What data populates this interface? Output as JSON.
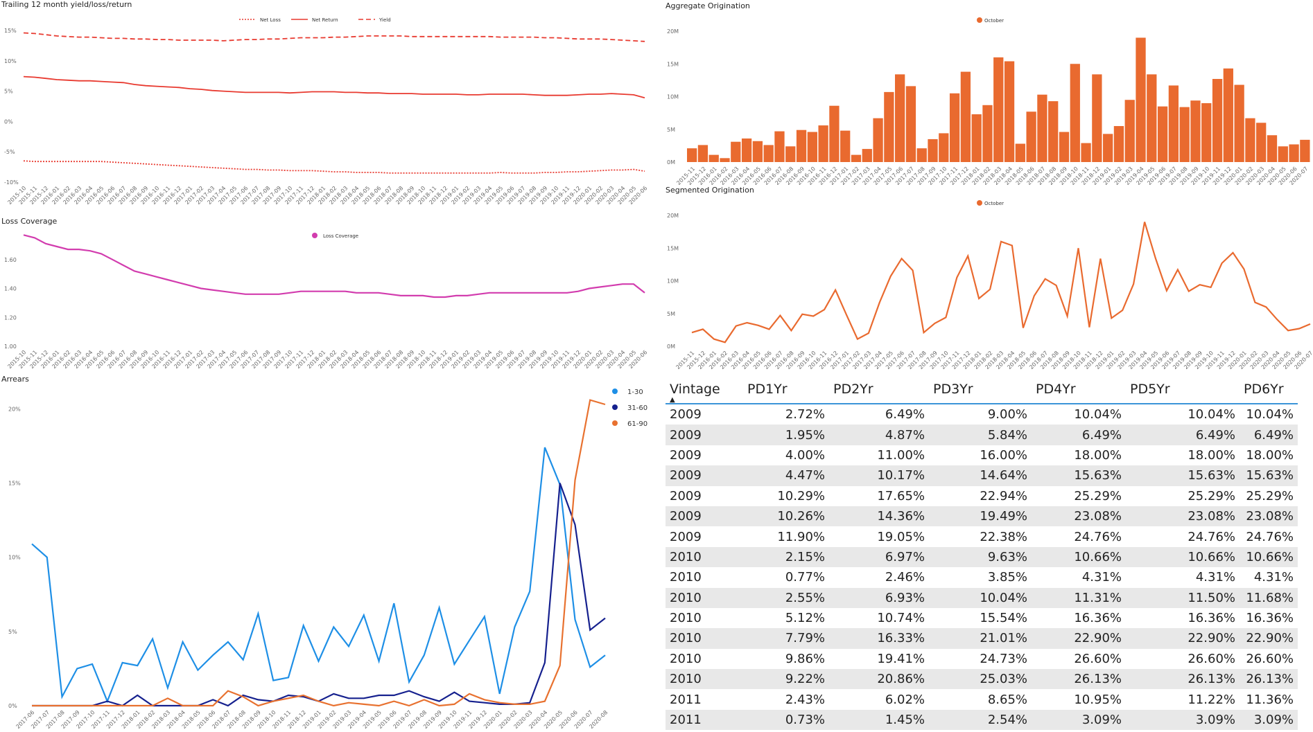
{
  "colors": {
    "red": "#e8392f",
    "orange": "#e96a2f",
    "magenta": "#d23cae",
    "light_blue": "#1e8fe6",
    "navy": "#15208e",
    "orange2": "#e8712f",
    "table_header_line": "#3a94d8"
  },
  "trailing": {
    "title": "Trailing 12 month yield/loss/return",
    "legend": [
      "Net Loss",
      "Net Return",
      "Yield"
    ],
    "chart_data": {
      "type": "line",
      "x": [
        "2015-10",
        "2015-11",
        "2015-12",
        "2016-01",
        "2016-02",
        "2016-03",
        "2016-04",
        "2016-05",
        "2016-06",
        "2016-07",
        "2016-08",
        "2016-09",
        "2016-10",
        "2016-11",
        "2016-12",
        "2017-01",
        "2017-02",
        "2017-03",
        "2017-04",
        "2017-05",
        "2017-06",
        "2017-07",
        "2017-08",
        "2017-09",
        "2017-10",
        "2017-11",
        "2017-12",
        "2018-01",
        "2018-02",
        "2018-03",
        "2018-04",
        "2018-05",
        "2018-06",
        "2018-07",
        "2018-08",
        "2018-09",
        "2018-10",
        "2018-11",
        "2018-12",
        "2019-01",
        "2019-02",
        "2019-03",
        "2019-04",
        "2019-05",
        "2019-06",
        "2019-07",
        "2019-08",
        "2019-09",
        "2019-10",
        "2019-11",
        "2019-12",
        "2020-01",
        "2020-02",
        "2020-03",
        "2020-04",
        "2020-05",
        "2020-06"
      ],
      "series": [
        {
          "name": "Yield",
          "values": [
            14.6,
            14.5,
            14.3,
            14.1,
            14.0,
            13.9,
            13.9,
            13.8,
            13.7,
            13.7,
            13.6,
            13.6,
            13.5,
            13.5,
            13.4,
            13.4,
            13.4,
            13.4,
            13.3,
            13.4,
            13.5,
            13.5,
            13.6,
            13.6,
            13.7,
            13.8,
            13.8,
            13.8,
            13.9,
            13.9,
            14.0,
            14.1,
            14.1,
            14.1,
            14.1,
            14.0,
            14.0,
            14.0,
            14.0,
            14.0,
            14.0,
            14.0,
            14.0,
            13.9,
            13.9,
            13.9,
            13.9,
            13.8,
            13.8,
            13.7,
            13.6,
            13.6,
            13.6,
            13.5,
            13.4,
            13.3,
            13.2
          ]
        },
        {
          "name": "Net Return",
          "values": [
            7.4,
            7.3,
            7.1,
            6.9,
            6.8,
            6.7,
            6.7,
            6.6,
            6.5,
            6.4,
            6.1,
            5.9,
            5.8,
            5.7,
            5.6,
            5.4,
            5.3,
            5.1,
            5.0,
            4.9,
            4.8,
            4.8,
            4.8,
            4.8,
            4.7,
            4.8,
            4.9,
            4.9,
            4.9,
            4.8,
            4.8,
            4.7,
            4.7,
            4.6,
            4.6,
            4.6,
            4.5,
            4.5,
            4.5,
            4.5,
            4.4,
            4.4,
            4.5,
            4.5,
            4.5,
            4.5,
            4.4,
            4.3,
            4.3,
            4.3,
            4.4,
            4.5,
            4.5,
            4.6,
            4.5,
            4.4,
            3.9
          ]
        },
        {
          "name": "Net Loss",
          "values": [
            -6.5,
            -6.6,
            -6.6,
            -6.6,
            -6.6,
            -6.6,
            -6.6,
            -6.6,
            -6.7,
            -6.8,
            -6.9,
            -7.0,
            -7.1,
            -7.2,
            -7.3,
            -7.4,
            -7.5,
            -7.6,
            -7.7,
            -7.8,
            -7.9,
            -7.9,
            -8.0,
            -8.0,
            -8.1,
            -8.1,
            -8.1,
            -8.2,
            -8.3,
            -8.3,
            -8.4,
            -8.4,
            -8.4,
            -8.5,
            -8.5,
            -8.5,
            -8.5,
            -8.5,
            -8.5,
            -8.5,
            -8.5,
            -8.5,
            -8.5,
            -8.4,
            -8.5,
            -8.5,
            -8.5,
            -8.4,
            -8.4,
            -8.3,
            -8.3,
            -8.2,
            -8.1,
            -8.0,
            -8.0,
            -7.9,
            -8.2
          ]
        }
      ],
      "ylim": [
        -10,
        15
      ],
      "yticks": [
        "15%",
        "10%",
        "5%",
        "0%",
        "-5%",
        "-10%"
      ]
    }
  },
  "loss_coverage": {
    "title": "Loss Coverage",
    "legend": [
      "Loss Coverage"
    ],
    "chart_data": {
      "type": "line",
      "x": [
        "2015-10",
        "2015-11",
        "2015-12",
        "2016-01",
        "2016-02",
        "2016-03",
        "2016-04",
        "2016-05",
        "2016-06",
        "2016-07",
        "2016-08",
        "2016-09",
        "2016-10",
        "2016-11",
        "2016-12",
        "2017-01",
        "2017-02",
        "2017-03",
        "2017-04",
        "2017-05",
        "2017-06",
        "2017-07",
        "2017-08",
        "2017-09",
        "2017-10",
        "2017-11",
        "2017-12",
        "2018-01",
        "2018-02",
        "2018-03",
        "2018-04",
        "2018-05",
        "2018-06",
        "2018-07",
        "2018-08",
        "2018-09",
        "2018-10",
        "2018-11",
        "2018-12",
        "2019-01",
        "2019-02",
        "2019-03",
        "2019-04",
        "2019-05",
        "2019-06",
        "2019-07",
        "2019-08",
        "2019-09",
        "2019-10",
        "2019-11",
        "2019-12",
        "2020-01",
        "2020-02",
        "2020-03",
        "2020-04",
        "2020-05",
        "2020-06"
      ],
      "series": [
        {
          "name": "Loss Coverage",
          "values": [
            1.77,
            1.75,
            1.71,
            1.69,
            1.67,
            1.67,
            1.66,
            1.64,
            1.6,
            1.56,
            1.52,
            1.5,
            1.48,
            1.46,
            1.44,
            1.42,
            1.4,
            1.39,
            1.38,
            1.37,
            1.36,
            1.36,
            1.36,
            1.36,
            1.37,
            1.38,
            1.38,
            1.38,
            1.38,
            1.38,
            1.37,
            1.37,
            1.37,
            1.36,
            1.35,
            1.35,
            1.35,
            1.34,
            1.34,
            1.35,
            1.35,
            1.36,
            1.37,
            1.37,
            1.37,
            1.37,
            1.37,
            1.37,
            1.37,
            1.37,
            1.38,
            1.4,
            1.41,
            1.42,
            1.43,
            1.43,
            1.37
          ]
        }
      ],
      "ylim": [
        1.0,
        1.8
      ],
      "yticks": [
        "1.60",
        "1.40",
        "1.20",
        "1.00"
      ]
    }
  },
  "arrears": {
    "title": "Arrears",
    "legend": [
      "1-30",
      "31-60",
      "61-90"
    ],
    "chart_data": {
      "type": "line",
      "x": [
        "2017-06",
        "2017-07",
        "2017-08",
        "2017-09",
        "2017-10",
        "2017-11",
        "2017-12",
        "2018-01",
        "2018-02",
        "2018-03",
        "2018-04",
        "2018-05",
        "2018-06",
        "2018-07",
        "2018-08",
        "2018-09",
        "2018-10",
        "2018-11",
        "2018-12",
        "2019-01",
        "2019-02",
        "2019-03",
        "2019-04",
        "2019-05",
        "2019-06",
        "2019-07",
        "2019-08",
        "2019-09",
        "2019-10",
        "2019-11",
        "2019-12",
        "2020-01",
        "2020-02",
        "2020-03",
        "2020-04",
        "2020-05",
        "2020-06",
        "2020-07",
        "2020-08"
      ],
      "series": [
        {
          "name": "1-30",
          "values": [
            10.9,
            10.0,
            0.6,
            2.5,
            2.8,
            0.3,
            2.9,
            2.7,
            4.5,
            1.2,
            4.3,
            2.4,
            3.4,
            4.3,
            3.1,
            6.2,
            1.7,
            1.9,
            5.4,
            3.0,
            5.3,
            4.0,
            6.1,
            3.0,
            6.9,
            1.6,
            3.4,
            6.6,
            2.8,
            4.4,
            6.0,
            0.8,
            5.3,
            7.7,
            17.4,
            14.9,
            5.8,
            2.6,
            3.4
          ]
        },
        {
          "name": "31-60",
          "values": [
            0.0,
            0.0,
            0.0,
            0.0,
            0.0,
            0.3,
            0.0,
            0.7,
            0.0,
            0.0,
            0.0,
            0.0,
            0.4,
            0.0,
            0.7,
            0.4,
            0.3,
            0.7,
            0.6,
            0.3,
            0.8,
            0.5,
            0.5,
            0.7,
            0.7,
            1.0,
            0.6,
            0.3,
            0.9,
            0.3,
            0.2,
            0.1,
            0.1,
            0.2,
            2.9,
            15.0,
            12.2,
            5.1,
            5.9
          ]
        },
        {
          "name": "61-90",
          "values": [
            0.0,
            0.0,
            0.0,
            0.0,
            0.0,
            0.0,
            0.0,
            0.0,
            0.0,
            0.5,
            0.0,
            0.0,
            0.0,
            1.0,
            0.6,
            0.0,
            0.3,
            0.5,
            0.7,
            0.3,
            0.0,
            0.2,
            0.1,
            0.0,
            0.3,
            0.0,
            0.4,
            0.0,
            0.1,
            0.8,
            0.4,
            0.2,
            0.1,
            0.1,
            0.3,
            2.7,
            15.2,
            20.6,
            20.3
          ]
        }
      ],
      "ylim": [
        0,
        21
      ],
      "yticks": [
        "20%",
        "15%",
        "10%",
        "5%",
        "0%"
      ]
    }
  },
  "aggregate": {
    "title": "Aggregate Origination",
    "legend": [
      "October"
    ],
    "chart_data": {
      "type": "bar",
      "categories": [
        "2015-11",
        "2015-12",
        "2016-01",
        "2016-02",
        "2016-03",
        "2016-04",
        "2016-05",
        "2016-06",
        "2016-07",
        "2016-08",
        "2016-09",
        "2016-10",
        "2016-11",
        "2016-12",
        "2017-01",
        "2017-02",
        "2017-03",
        "2017-04",
        "2017-05",
        "2017-06",
        "2017-07",
        "2017-08",
        "2017-09",
        "2017-10",
        "2017-11",
        "2017-12",
        "2018-01",
        "2018-02",
        "2018-03",
        "2018-04",
        "2018-05",
        "2018-06",
        "2018-07",
        "2018-08",
        "2018-09",
        "2018-10",
        "2018-11",
        "2018-12",
        "2019-01",
        "2019-02",
        "2019-03",
        "2019-04",
        "2019-05",
        "2019-06",
        "2019-07",
        "2019-08",
        "2019-09",
        "2019-10",
        "2019-11",
        "2019-12",
        "2020-01",
        "2020-02",
        "2020-03",
        "2020-04",
        "2020-05",
        "2020-06",
        "2020-07"
      ],
      "values": [
        2.1,
        2.6,
        1.1,
        0.6,
        3.1,
        3.6,
        3.2,
        2.6,
        4.7,
        2.4,
        4.9,
        4.6,
        5.6,
        8.6,
        4.8,
        1.1,
        2.0,
        6.7,
        10.7,
        13.4,
        11.6,
        2.1,
        3.5,
        4.4,
        10.5,
        13.8,
        7.3,
        8.7,
        16.0,
        15.4,
        2.8,
        7.7,
        10.3,
        9.3,
        4.6,
        15.0,
        2.9,
        13.4,
        4.3,
        5.5,
        9.5,
        19.0,
        13.4,
        8.5,
        11.7,
        8.4,
        9.4,
        9.0,
        12.7,
        14.3,
        11.8,
        6.7,
        6.0,
        4.1,
        2.4,
        2.7,
        3.4
      ],
      "ylim": [
        0,
        20
      ],
      "yticks": [
        "20M",
        "15M",
        "10M",
        "5M",
        "0M"
      ]
    }
  },
  "segmented": {
    "title": "Segmented Origination",
    "legend": [
      "October"
    ],
    "chart_data": {
      "type": "line",
      "x": [
        "2015-11",
        "2015-12",
        "2016-01",
        "2016-02",
        "2016-03",
        "2016-04",
        "2016-05",
        "2016-06",
        "2016-07",
        "2016-08",
        "2016-09",
        "2016-10",
        "2016-11",
        "2016-12",
        "2017-01",
        "2017-02",
        "2017-03",
        "2017-04",
        "2017-05",
        "2017-06",
        "2017-07",
        "2017-08",
        "2017-09",
        "2017-10",
        "2017-11",
        "2017-12",
        "2018-01",
        "2018-02",
        "2018-03",
        "2018-04",
        "2018-05",
        "2018-06",
        "2018-07",
        "2018-08",
        "2018-09",
        "2018-10",
        "2018-11",
        "2018-12",
        "2019-01",
        "2019-02",
        "2019-03",
        "2019-04",
        "2019-05",
        "2019-06",
        "2019-07",
        "2019-08",
        "2019-09",
        "2019-10",
        "2019-11",
        "2019-12",
        "2020-01",
        "2020-02",
        "2020-03",
        "2020-04",
        "2020-05",
        "2020-06",
        "2020-07"
      ],
      "series": [
        {
          "name": "October",
          "values": [
            2.1,
            2.6,
            1.1,
            0.6,
            3.1,
            3.6,
            3.2,
            2.6,
            4.7,
            2.4,
            4.9,
            4.6,
            5.6,
            8.6,
            4.8,
            1.1,
            2.0,
            6.7,
            10.7,
            13.4,
            11.6,
            2.1,
            3.5,
            4.4,
            10.5,
            13.8,
            7.3,
            8.7,
            16.0,
            15.4,
            2.8,
            7.7,
            10.3,
            9.3,
            4.6,
            15.0,
            2.9,
            13.4,
            4.3,
            5.5,
            9.5,
            19.0,
            13.4,
            8.5,
            11.7,
            8.4,
            9.4,
            9.0,
            12.7,
            14.3,
            11.8,
            6.7,
            6.0,
            4.1,
            2.4,
            2.7,
            3.4
          ]
        }
      ],
      "ylim": [
        0,
        20
      ],
      "yticks": [
        "20M",
        "15M",
        "10M",
        "5M",
        "0M"
      ]
    }
  },
  "vintage_table": {
    "headers": [
      "Vintage",
      "PD1Yr",
      "PD2Yr",
      "PD3Yr",
      "PD4Yr",
      "PD5Yr",
      "PD6Yr"
    ],
    "rows": [
      [
        "2009",
        "2.72%",
        "6.49%",
        "9.00%",
        "10.04%",
        "10.04%",
        "10.04%"
      ],
      [
        "2009",
        "1.95%",
        "4.87%",
        "5.84%",
        "6.49%",
        "6.49%",
        "6.49%"
      ],
      [
        "2009",
        "4.00%",
        "11.00%",
        "16.00%",
        "18.00%",
        "18.00%",
        "18.00%"
      ],
      [
        "2009",
        "4.47%",
        "10.17%",
        "14.64%",
        "15.63%",
        "15.63%",
        "15.63%"
      ],
      [
        "2009",
        "10.29%",
        "17.65%",
        "22.94%",
        "25.29%",
        "25.29%",
        "25.29%"
      ],
      [
        "2009",
        "10.26%",
        "14.36%",
        "19.49%",
        "23.08%",
        "23.08%",
        "23.08%"
      ],
      [
        "2009",
        "11.90%",
        "19.05%",
        "22.38%",
        "24.76%",
        "24.76%",
        "24.76%"
      ],
      [
        "2010",
        "2.15%",
        "6.97%",
        "9.63%",
        "10.66%",
        "10.66%",
        "10.66%"
      ],
      [
        "2010",
        "0.77%",
        "2.46%",
        "3.85%",
        "4.31%",
        "4.31%",
        "4.31%"
      ],
      [
        "2010",
        "2.55%",
        "6.93%",
        "10.04%",
        "11.31%",
        "11.50%",
        "11.68%"
      ],
      [
        "2010",
        "5.12%",
        "10.74%",
        "15.54%",
        "16.36%",
        "16.36%",
        "16.36%"
      ],
      [
        "2010",
        "7.79%",
        "16.33%",
        "21.01%",
        "22.90%",
        "22.90%",
        "22.90%"
      ],
      [
        "2010",
        "9.86%",
        "19.41%",
        "24.73%",
        "26.60%",
        "26.60%",
        "26.60%"
      ],
      [
        "2010",
        "9.22%",
        "20.86%",
        "25.03%",
        "26.13%",
        "26.13%",
        "26.13%"
      ],
      [
        "2011",
        "2.43%",
        "6.02%",
        "8.65%",
        "10.95%",
        "11.22%",
        "11.36%"
      ],
      [
        "2011",
        "0.73%",
        "1.45%",
        "2.54%",
        "3.09%",
        "3.09%",
        "3.09%"
      ]
    ]
  }
}
